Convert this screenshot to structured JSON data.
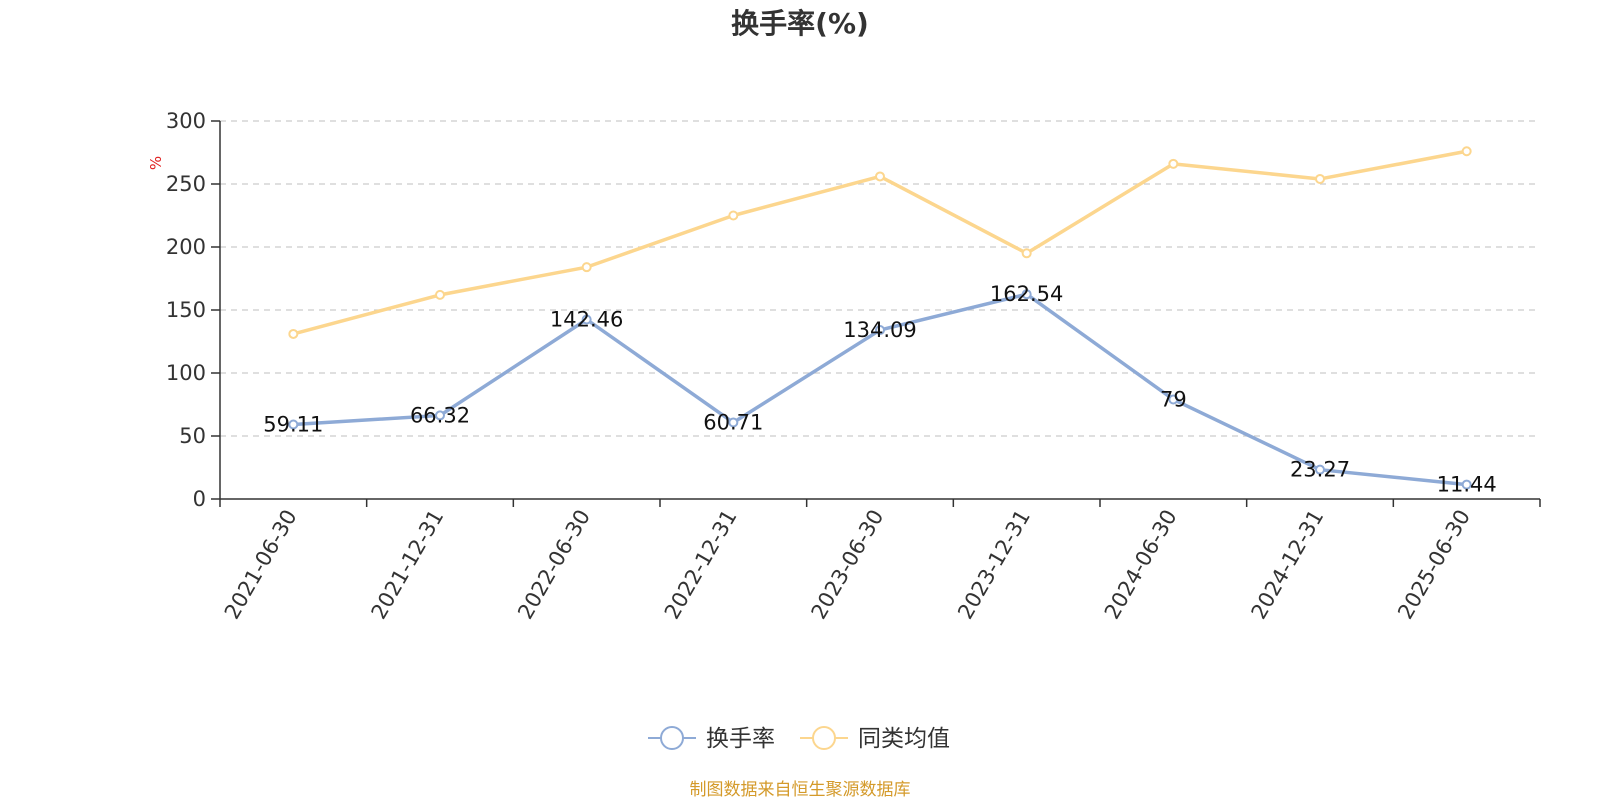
{
  "chart_data": {
    "type": "line",
    "title": "换手率(%)",
    "ylabel": "%",
    "ylim": [
      0,
      300
    ],
    "yticks": [
      0,
      50,
      100,
      150,
      200,
      250,
      300
    ],
    "grid": true,
    "legend_position": "bottom",
    "categories": [
      "2021-06-30",
      "2021-12-31",
      "2022-06-30",
      "2022-12-31",
      "2023-06-30",
      "2023-12-31",
      "2024-06-30",
      "2024-12-31",
      "2025-06-30"
    ],
    "series": [
      {
        "name": "换手率",
        "color": "#8eaad6",
        "values": [
          59.11,
          66.32,
          142.46,
          60.71,
          134.09,
          162.54,
          79,
          23.27,
          11.44
        ],
        "labels": [
          "59.11",
          "66.32",
          "142.46",
          "60.71",
          "134.09",
          "162.54",
          "79",
          "23.27",
          "11.44"
        ],
        "show_labels": true
      },
      {
        "name": "同类均值",
        "color": "#fcd68e",
        "values": [
          131,
          162,
          184,
          225,
          256,
          195,
          266,
          254,
          276
        ],
        "show_labels": false
      }
    ]
  },
  "footer": {
    "source": "制图数据来自恒生聚源数据库",
    "source_color": "#d49a2a"
  }
}
